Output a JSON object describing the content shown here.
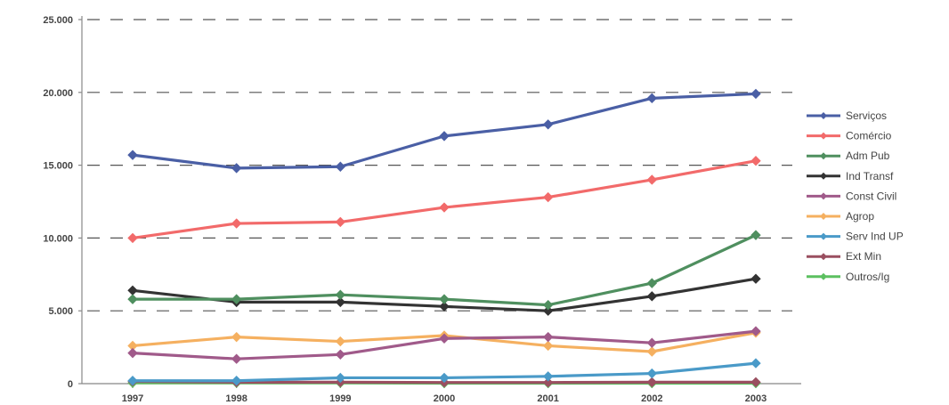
{
  "chart_data": {
    "type": "line",
    "title": "",
    "xlabel": "",
    "ylabel": "",
    "categories": [
      "1997",
      "1998",
      "1999",
      "2000",
      "2001",
      "2002",
      "2003"
    ],
    "ylim": [
      0,
      25000
    ],
    "yticks": [
      0,
      5000,
      10000,
      15000,
      20000,
      25000
    ],
    "ytick_labels": [
      "0",
      "5.000",
      "10.000",
      "15.000",
      "20.000",
      "25.000"
    ],
    "grid": true,
    "legend_position": "right",
    "series": [
      {
        "name": "Serviços",
        "color": "#4a5fa5",
        "values": [
          15700,
          14800,
          14900,
          17000,
          17800,
          19600,
          19900
        ]
      },
      {
        "name": "Comércio",
        "color": "#f26a6a",
        "values": [
          10000,
          11000,
          11100,
          12100,
          12800,
          14000,
          15300
        ]
      },
      {
        "name": "Adm Pub",
        "color": "#4f8f5f",
        "values": [
          5800,
          5800,
          6100,
          5800,
          5400,
          6900,
          10200
        ]
      },
      {
        "name": "Ind Transf",
        "color": "#333333",
        "values": [
          6400,
          5600,
          5600,
          5300,
          5000,
          6000,
          7200
        ]
      },
      {
        "name": "Const Civil",
        "color": "#a05a8a",
        "values": [
          2100,
          1700,
          2000,
          3100,
          3200,
          2800,
          3600
        ]
      },
      {
        "name": "Agrop",
        "color": "#f5b060",
        "values": [
          2600,
          3200,
          2900,
          3300,
          2600,
          2200,
          3500
        ]
      },
      {
        "name": "Serv Ind UP",
        "color": "#4a9ac8",
        "values": [
          200,
          200,
          400,
          400,
          500,
          700,
          1400
        ]
      },
      {
        "name": "Ext Min",
        "color": "#9a4f60",
        "values": [
          150,
          100,
          100,
          80,
          80,
          100,
          100
        ]
      },
      {
        "name": "Outros/Ig",
        "color": "#5cc060",
        "values": [
          50,
          50,
          50,
          30,
          30,
          30,
          30
        ]
      }
    ]
  }
}
